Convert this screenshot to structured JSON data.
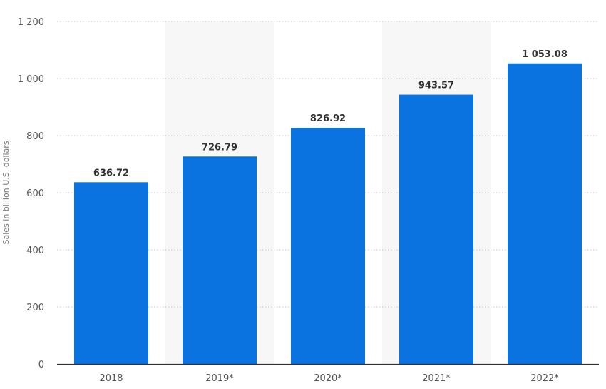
{
  "chart_data": {
    "type": "bar",
    "title": "",
    "xlabel": "",
    "ylabel": "Sales in billion U.S. dollars",
    "categories": [
      "2018",
      "2019*",
      "2020*",
      "2021*",
      "2022*"
    ],
    "values": [
      636.72,
      726.79,
      826.92,
      943.57,
      1053.08
    ],
    "data_labels": [
      "636.72",
      "726.79",
      "826.92",
      "943.57",
      "1 053.08"
    ],
    "ylim": [
      0,
      1200
    ],
    "yticks": [
      0,
      200,
      400,
      600,
      800,
      1000,
      1200
    ],
    "ytick_labels": [
      "0",
      "200",
      "400",
      "600",
      "800",
      "1 000",
      "1 200"
    ],
    "grid": true,
    "grid_style": "dotted",
    "shaded_categories": [
      "2019*",
      "2021*"
    ],
    "colors": {
      "bar": "#0a73e0",
      "shade": "#f7f7f7",
      "grid": "#c8c8c8",
      "axis": "#333333"
    }
  }
}
